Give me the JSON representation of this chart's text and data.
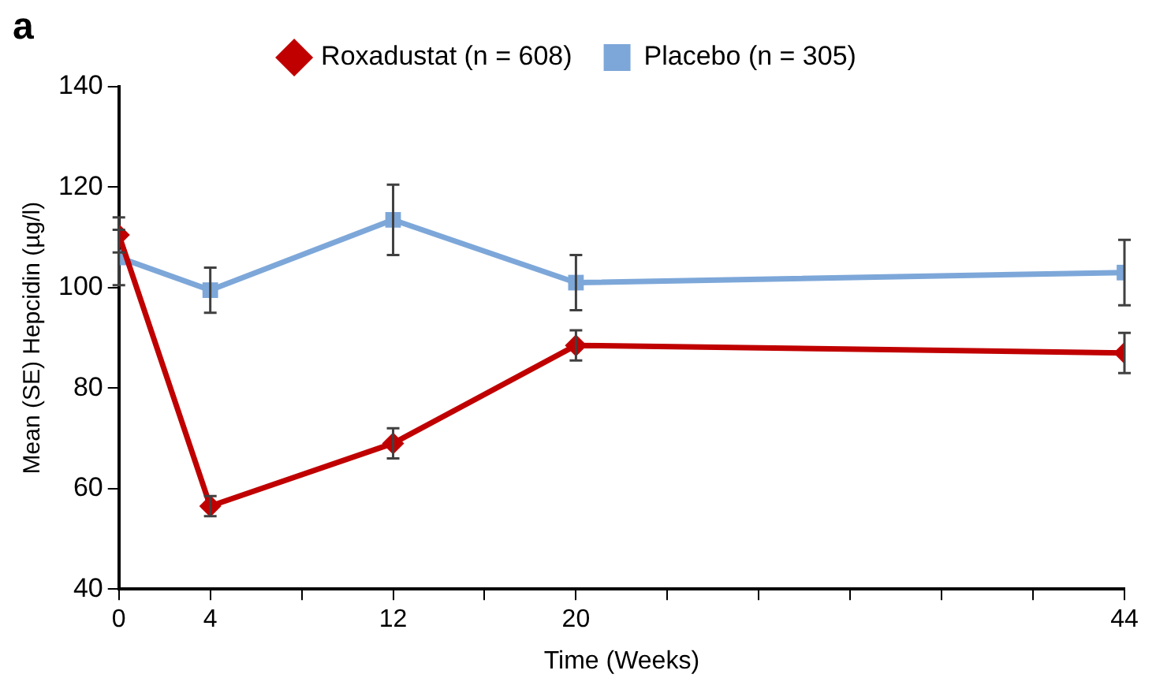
{
  "chart_data": {
    "type": "line",
    "xlabel": "Time (Weeks)",
    "ylabel": "Mean (SE) Hepcidin (µg/l)",
    "annotations": [
      "a"
    ],
    "x": [
      0,
      4,
      12,
      20,
      44
    ],
    "series": [
      {
        "name": "Roxadustat (n = 608)",
        "color": "#c00000",
        "marker": "diamond",
        "values": [
          110.5,
          56.5,
          69,
          88.5,
          87
        ],
        "errors": [
          3.5,
          2,
          3,
          3,
          4
        ]
      },
      {
        "name": "Placebo (n = 305)",
        "color": "#7da7d9",
        "marker": "square",
        "values": [
          106,
          99.5,
          113.5,
          101,
          103
        ],
        "errors": [
          5.5,
          4.5,
          7,
          5.5,
          6.5
        ]
      }
    ],
    "xlim": [
      0,
      44
    ],
    "xticks": [
      0,
      4,
      {
        "value": 8,
        "label": null
      },
      12,
      {
        "value": 16,
        "label": null
      },
      20,
      {
        "value": 24,
        "label": null
      },
      {
        "value": 28,
        "label": null
      },
      {
        "value": 32,
        "label": null
      },
      {
        "value": 36,
        "label": null
      },
      {
        "value": 40,
        "label": null
      },
      44
    ],
    "ylim": [
      40,
      140
    ],
    "yticks": [
      40,
      60,
      80,
      100,
      120,
      140
    ],
    "grid": false,
    "legend": "top",
    "line_style": "solid"
  }
}
